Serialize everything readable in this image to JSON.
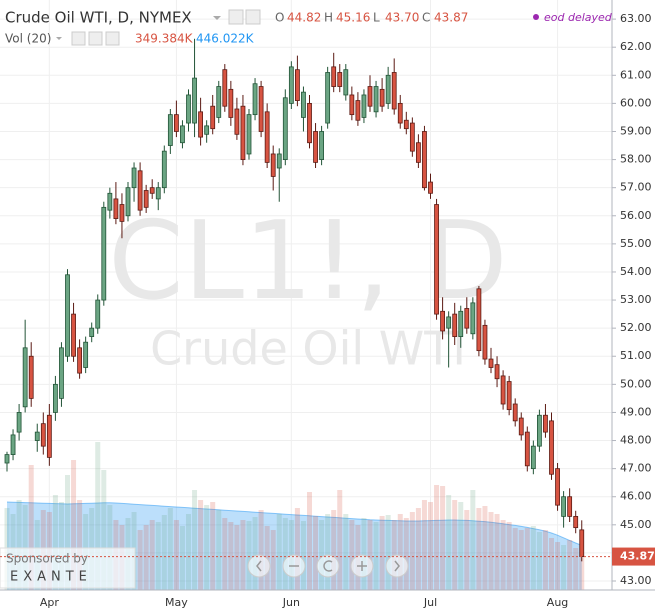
{
  "chart_data": {
    "type": "candlestick",
    "title": "Crude Oil WTI, D, NYMEX",
    "watermark": {
      "symbol": "CL1!, D",
      "name": "Crude Oil WTI"
    },
    "status": "eod delayed",
    "ohlc_legend": [
      {
        "key": "O",
        "label": "44.82"
      },
      {
        "key": "H",
        "label": "45.16"
      },
      {
        "key": "L",
        "label": "43.70"
      },
      {
        "key": "C",
        "label": "43.87"
      }
    ],
    "sponsor": {
      "caption": "Sponsored by",
      "name": "EXANTE"
    },
    "up_color": "#6ba583",
    "down_color": "#d75442",
    "grid": true,
    "ylim": [
      42.68,
      63.68
    ],
    "yticks": [
      {
        "value": 43,
        "label": "43.00"
      },
      {
        "value": 44,
        "label": "44.00"
      },
      {
        "value": 45,
        "label": "45.00"
      },
      {
        "value": 46,
        "label": "46.00"
      },
      {
        "value": 47,
        "label": "47.00"
      },
      {
        "value": 48,
        "label": "48.00"
      },
      {
        "value": 49,
        "label": "49.00"
      },
      {
        "value": 50,
        "label": "50.00"
      },
      {
        "value": 51,
        "label": "51.00"
      },
      {
        "value": 52,
        "label": "52.00"
      },
      {
        "value": 53,
        "label": "53.00"
      },
      {
        "value": 54,
        "label": "54.00"
      },
      {
        "value": 55,
        "label": "55.00"
      },
      {
        "value": 56,
        "label": "56.00"
      },
      {
        "value": 57,
        "label": "57.00"
      },
      {
        "value": 58,
        "label": "58.00"
      },
      {
        "value": 59,
        "label": "59.00"
      },
      {
        "value": 60,
        "label": "60.00"
      },
      {
        "value": 61,
        "label": "61.00"
      },
      {
        "value": 62,
        "label": "62.00"
      },
      {
        "value": 63,
        "label": "63.00"
      }
    ],
    "last_price": {
      "value": 43.87,
      "label": "43.87"
    },
    "categories": [
      null,
      null,
      null,
      null,
      null,
      null,
      null,
      "Apr",
      null,
      null,
      null,
      null,
      null,
      null,
      null,
      null,
      null,
      null,
      null,
      null,
      null,
      null,
      null,
      null,
      null,
      null,
      null,
      null,
      "May",
      null,
      null,
      null,
      null,
      null,
      null,
      null,
      null,
      null,
      null,
      null,
      null,
      null,
      null,
      null,
      null,
      null,
      null,
      "Jun",
      null,
      null,
      null,
      null,
      null,
      null,
      null,
      null,
      null,
      null,
      null,
      null,
      null,
      null,
      null,
      null,
      null,
      null,
      null,
      null,
      null,
      null,
      "Jul",
      null,
      null,
      null,
      null,
      null,
      null,
      null,
      null,
      null,
      null,
      null,
      null,
      null,
      null,
      null,
      null,
      null,
      null,
      null,
      null,
      "Aug",
      null,
      null,
      null,
      null
    ],
    "open": [
      47.2,
      47.5,
      48.3,
      49.2,
      51.0,
      48.0,
      48.6,
      48.9,
      49.0,
      49.5,
      51.0,
      52.5,
      51.3,
      50.6,
      51.7,
      52.0,
      53.0,
      56.2,
      56.6,
      56.4,
      56.0,
      57.0,
      57.6,
      56.9,
      57.0,
      56.6,
      57.0,
      58.5,
      59.6,
      58.6,
      59.3,
      59.3,
      59.7,
      58.9,
      59.9,
      59.5,
      61.2,
      60.5,
      59.8,
      59.9,
      58.2,
      59.6,
      60.6,
      59.7,
      58.2,
      57.7,
      58.0,
      60.0,
      61.2,
      59.5,
      60.0,
      59.0,
      58.0,
      59.3,
      61.3,
      61.1,
      60.3,
      60.3,
      60.1,
      59.5,
      60.6,
      59.7,
      60.5,
      60.0,
      61.1,
      60.0,
      59.4,
      59.3,
      58.6,
      59.0,
      57.2,
      56.4,
      52.6,
      52.0,
      52.5,
      51.7,
      52.7,
      51.8,
      53.4,
      52.1,
      50.9,
      50.7,
      50.3,
      50.1,
      49.3,
      48.8,
      48.3,
      47.0,
      47.8,
      48.9,
      48.7,
      47.0,
      45.3,
      46.0,
      45.3,
      44.82
    ],
    "high": [
      47.6,
      48.4,
      49.3,
      52.3,
      51.5,
      48.6,
      49.0,
      49.3,
      50.3,
      51.5,
      54.1,
      52.9,
      51.6,
      51.7,
      52.2,
      53.2,
      56.5,
      57.0,
      57.2,
      56.8,
      57.2,
      57.9,
      57.9,
      57.1,
      57.3,
      57.2,
      58.5,
      59.8,
      60.1,
      59.4,
      60.5,
      62.3,
      60.2,
      59.4,
      60.3,
      60.8,
      61.4,
      60.8,
      60.2,
      60.3,
      59.8,
      60.9,
      60.8,
      60.0,
      58.5,
      58.4,
      60.5,
      61.5,
      61.7,
      60.6,
      60.3,
      59.3,
      59.2,
      61.3,
      61.8,
      61.4,
      61.4,
      60.6,
      60.4,
      60.5,
      61.0,
      60.8,
      60.9,
      61.3,
      61.6,
      60.3,
      59.7,
      59.5,
      58.9,
      59.2,
      57.5,
      56.6,
      53.1,
      52.6,
      52.9,
      52.8,
      53.1,
      53.1,
      53.5,
      52.3,
      51.3,
      51.0,
      50.5,
      50.3,
      49.5,
      49.0,
      48.5,
      48.0,
      49.1,
      49.3,
      49.0,
      47.2,
      46.2,
      46.3,
      45.5,
      45.16
    ],
    "low": [
      46.9,
      47.3,
      48.0,
      49.0,
      49.2,
      47.6,
      47.5,
      47.1,
      48.7,
      49.2,
      50.8,
      50.8,
      50.2,
      50.4,
      51.5,
      51.8,
      52.8,
      55.9,
      55.7,
      55.2,
      55.8,
      56.5,
      56.0,
      56.1,
      56.6,
      56.2,
      56.8,
      58.2,
      58.8,
      58.4,
      59.0,
      58.8,
      58.5,
      58.6,
      58.9,
      59.3,
      59.7,
      59.2,
      58.7,
      57.8,
      58.0,
      59.4,
      58.8,
      57.7,
      56.9,
      56.5,
      57.8,
      59.8,
      59.9,
      59.0,
      58.4,
      57.7,
      57.8,
      59.1,
      60.4,
      60.4,
      60.1,
      59.4,
      59.2,
      59.3,
      59.7,
      59.5,
      59.7,
      59.8,
      59.6,
      59.1,
      58.9,
      58.1,
      57.7,
      56.9,
      56.6,
      52.3,
      51.6,
      50.6,
      51.4,
      51.3,
      51.8,
      51.6,
      51.0,
      50.7,
      50.4,
      49.9,
      49.1,
      48.9,
      48.5,
      48.0,
      46.9,
      46.8,
      47.6,
      48.1,
      46.6,
      45.5,
      44.9,
      45.1,
      44.7,
      43.7
    ],
    "close": [
      47.5,
      48.2,
      49.0,
      51.3,
      49.5,
      48.3,
      47.8,
      47.4,
      50.0,
      51.3,
      53.9,
      51.0,
      50.4,
      51.5,
      52.0,
      53.0,
      56.3,
      56.8,
      55.9,
      55.8,
      57.0,
      57.7,
      56.2,
      56.3,
      56.8,
      57.0,
      58.3,
      59.6,
      59.0,
      59.2,
      60.3,
      60.9,
      58.8,
      59.2,
      59.1,
      60.6,
      59.9,
      59.5,
      58.9,
      58.0,
      59.6,
      60.7,
      59.0,
      57.9,
      57.4,
      58.2,
      60.2,
      61.3,
      60.1,
      60.4,
      58.6,
      57.9,
      59.0,
      61.1,
      60.6,
      60.6,
      61.2,
      59.6,
      59.4,
      60.3,
      59.9,
      60.6,
      59.9,
      61.0,
      59.8,
      59.3,
      59.1,
      58.3,
      57.9,
      57.0,
      56.8,
      52.5,
      51.9,
      52.4,
      51.7,
      52.6,
      52.0,
      52.9,
      51.2,
      50.9,
      50.6,
      50.2,
      49.3,
      49.1,
      48.7,
      48.2,
      47.1,
      47.8,
      48.9,
      48.3,
      46.8,
      45.7,
      46.0,
      45.3,
      44.9,
      43.87
    ],
    "volume": {
      "name": "Vol (20)",
      "last_label": "349.384K",
      "ma_last_label": "446.022K",
      "ma_color": "#2196f3",
      "values": [
        820,
        760,
        900,
        850,
        1250,
        700,
        800,
        780,
        950,
        880,
        1150,
        1300,
        900,
        760,
        820,
        1480,
        1200,
        850,
        700,
        650,
        720,
        780,
        600,
        650,
        700,
        680,
        750,
        820,
        700,
        640,
        760,
        1000,
        900,
        850,
        880,
        800,
        720,
        680,
        650,
        700,
        690,
        730,
        800,
        640,
        600,
        760,
        720,
        700,
        820,
        690,
        980,
        740,
        700,
        760,
        800,
        1000,
        760,
        700,
        650,
        720,
        700,
        680,
        740,
        750,
        700,
        760,
        720,
        780,
        820,
        900,
        880,
        1050,
        1040,
        950,
        900,
        880,
        800,
        1000,
        820,
        840,
        780,
        760,
        700,
        680,
        620,
        600,
        620,
        640,
        580,
        600,
        520,
        480,
        450,
        500,
        420,
        349.384
      ],
      "ma": [
        880,
        878,
        876,
        874,
        872,
        870,
        868,
        866,
        864,
        862,
        860,
        862,
        864,
        866,
        868,
        870,
        872,
        872,
        870,
        866,
        862,
        858,
        854,
        850,
        846,
        842,
        838,
        834,
        830,
        826,
        822,
        818,
        814,
        810,
        806,
        802,
        798,
        794,
        790,
        786,
        782,
        778,
        774,
        770,
        766,
        762,
        758,
        754,
        750,
        746,
        742,
        738,
        734,
        730,
        726,
        722,
        718,
        714,
        710,
        706,
        702,
        700,
        698,
        696,
        694,
        692,
        690,
        690,
        690,
        692,
        694,
        696,
        698,
        700,
        700,
        698,
        696,
        692,
        688,
        684,
        678,
        670,
        662,
        654,
        646,
        636,
        626,
        614,
        602,
        588,
        570,
        548,
        522,
        496,
        470,
        446.022
      ]
    }
  }
}
